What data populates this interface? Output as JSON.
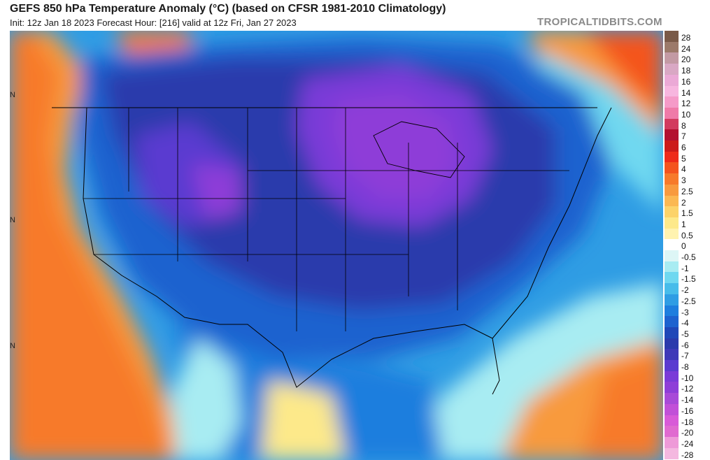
{
  "header": {
    "title": "GEFS 850 hPa Temperature Anomaly (°C) (based on CFSR 1981-2010 Climatology)",
    "subtitle": "Init: 12z Jan 18 2023   Forecast Hour: [216]   valid at 12z Fri, Jan 27 2023",
    "brand": "TROPICALTIDBITS.COM"
  },
  "map": {
    "latitude_labels": [
      "N",
      "N",
      "N"
    ]
  },
  "colorbar": {
    "ticks": [
      "28",
      "24",
      "20",
      "18",
      "16",
      "14",
      "12",
      "10",
      "8",
      "7",
      "6",
      "5",
      "4",
      "3",
      "2.5",
      "2",
      "1.5",
      "1",
      "0.5",
      "0",
      "-0.5",
      "-1",
      "-1.5",
      "-2",
      "-2.5",
      "-3",
      "-4",
      "-5",
      "-6",
      "-7",
      "-8",
      "-10",
      "-12",
      "-14",
      "-16",
      "-18",
      "-20",
      "-24",
      "-28"
    ],
    "colors": [
      "#7a5a48",
      "#9c7a6a",
      "#c39aa4",
      "#d9a8c4",
      "#eba9d6",
      "#f7b6df",
      "#f59ac8",
      "#ef7aa8",
      "#d23b5f",
      "#b3102f",
      "#cc1a1a",
      "#ee2a1a",
      "#f4541e",
      "#f77a2a",
      "#f89a3e",
      "#fbb852",
      "#fcd36a",
      "#fde98a",
      "#fff3b0",
      "#ffffff",
      "#ddf6f6",
      "#a8ecf2",
      "#6fd8f0",
      "#47bcea",
      "#2f9de4",
      "#1e7ede",
      "#1d62cf",
      "#1f47b8",
      "#2a3aac",
      "#3e39b8",
      "#5a3ad0",
      "#7a3ad8",
      "#8e3ed8",
      "#a84ad8",
      "#c150d8",
      "#d85ad8",
      "#e06ad0",
      "#ee9ad8",
      "#f4b8e0"
    ]
  }
}
